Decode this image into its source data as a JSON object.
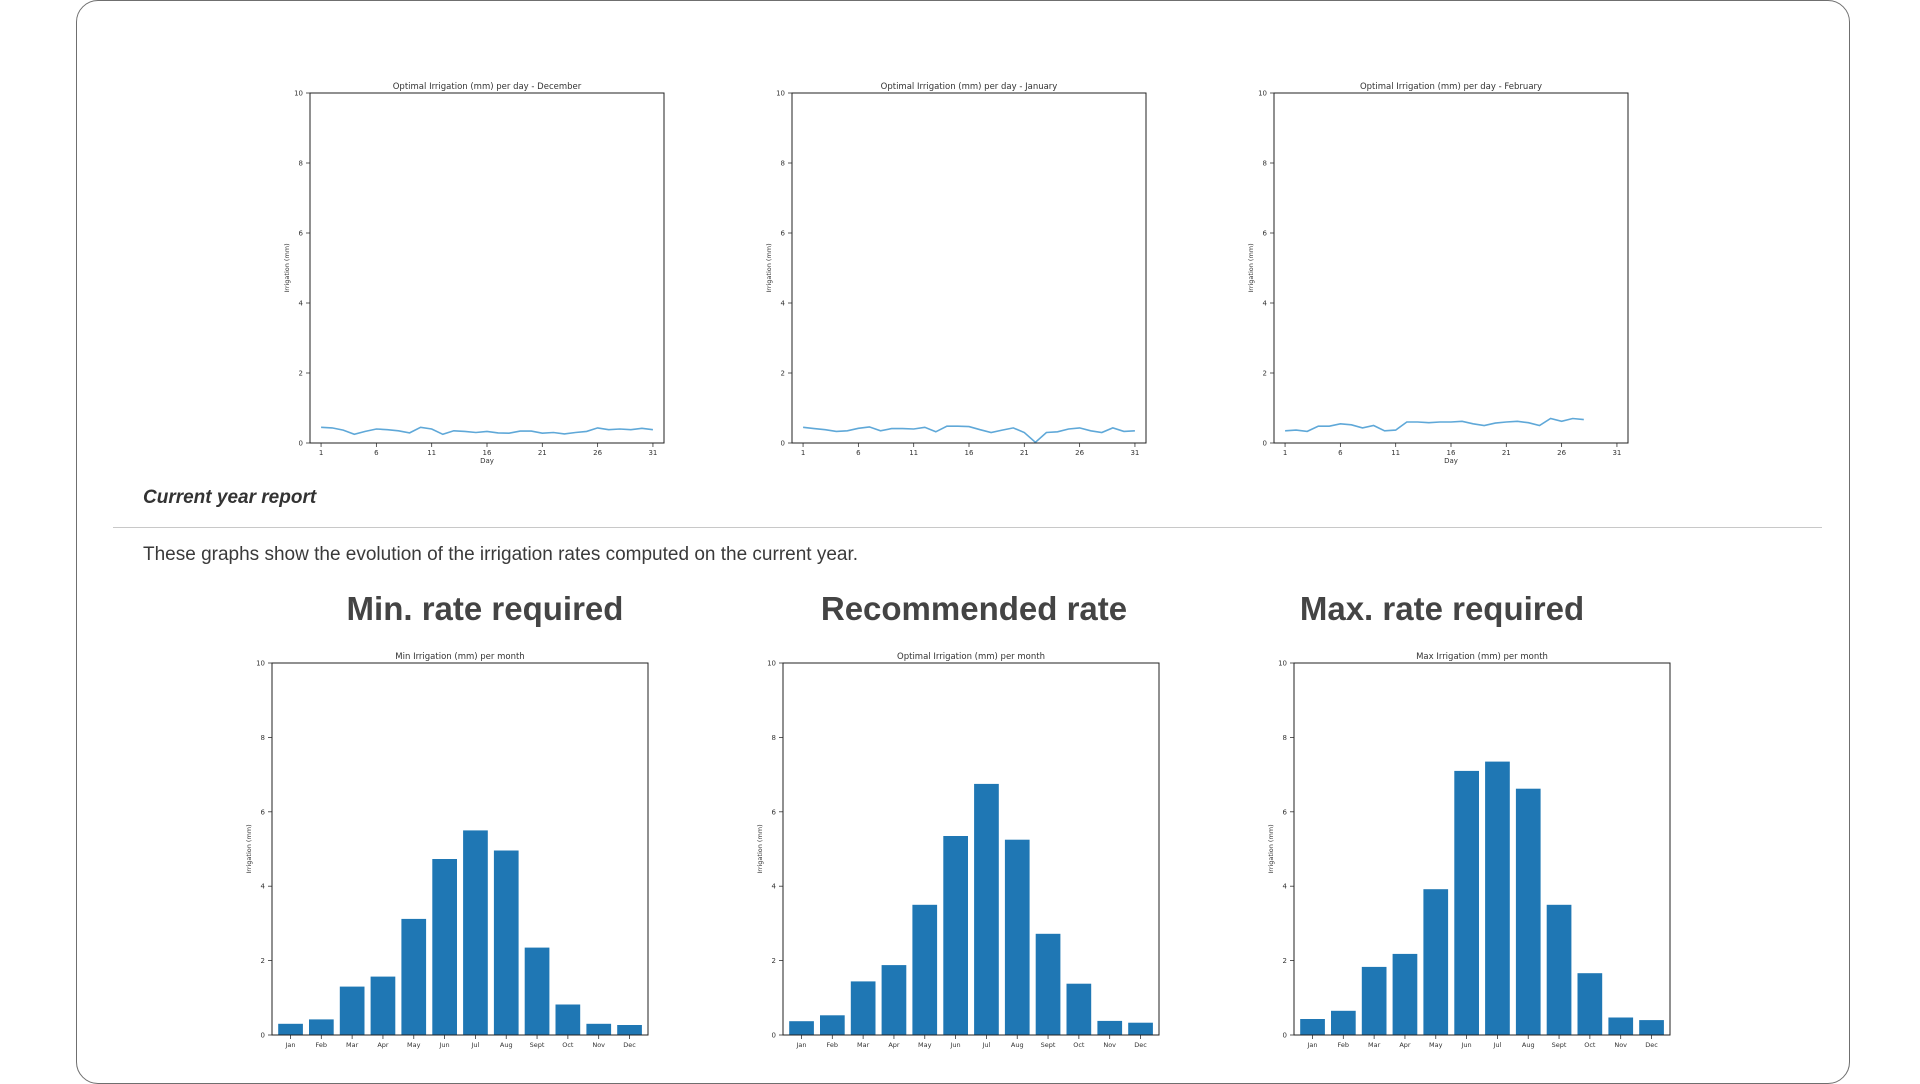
{
  "section_title": "Current year report",
  "description": "These graphs show the evolution of the irrigation rates computed on the current year.",
  "headings": {
    "min": "Min. rate required",
    "recommended": "Recommended rate",
    "max": "Max. rate required"
  },
  "colors": {
    "line": "#5fa8d8",
    "bar": "#1f77b4"
  },
  "chart_data": [
    {
      "id": "daily-december",
      "type": "line",
      "title": "Optimal Irrigation (mm) per day - December",
      "xlabel": "Day",
      "ylabel": "Irrigation (mm)",
      "xlim": [
        0,
        32
      ],
      "ylim": [
        0,
        10
      ],
      "xticks": [
        1,
        6,
        11,
        16,
        21,
        26,
        31
      ],
      "yticks": [
        0,
        2,
        4,
        6,
        8,
        10
      ],
      "series": [
        {
          "x": [
            1,
            2,
            3,
            4,
            5,
            6,
            7,
            8,
            9,
            10,
            11,
            12,
            13,
            14,
            15,
            16,
            17,
            18,
            19,
            20,
            21,
            22,
            23,
            24,
            25,
            26,
            27,
            28,
            29,
            30,
            31
          ],
          "y": [
            0.45,
            0.43,
            0.37,
            0.25,
            0.33,
            0.4,
            0.38,
            0.35,
            0.29,
            0.45,
            0.4,
            0.25,
            0.35,
            0.33,
            0.3,
            0.33,
            0.29,
            0.28,
            0.34,
            0.34,
            0.28,
            0.3,
            0.26,
            0.3,
            0.33,
            0.43,
            0.38,
            0.4,
            0.38,
            0.42,
            0.38
          ]
        }
      ]
    },
    {
      "id": "daily-january",
      "type": "line",
      "title": "Optimal Irrigation (mm) per day - January",
      "xlabel": "",
      "ylabel": "Irrigation (mm)",
      "xlim": [
        0,
        32
      ],
      "ylim": [
        0,
        10
      ],
      "xticks": [
        1,
        6,
        11,
        16,
        21,
        26,
        31
      ],
      "yticks": [
        0,
        2,
        4,
        6,
        8,
        10
      ],
      "series": [
        {
          "x": [
            1,
            2,
            3,
            4,
            5,
            6,
            7,
            8,
            9,
            10,
            11,
            12,
            13,
            14,
            15,
            16,
            17,
            18,
            19,
            20,
            21,
            22,
            23,
            24,
            25,
            26,
            27,
            28,
            29,
            30,
            31
          ],
          "y": [
            0.45,
            0.41,
            0.38,
            0.33,
            0.35,
            0.42,
            0.46,
            0.35,
            0.41,
            0.41,
            0.4,
            0.45,
            0.32,
            0.48,
            0.48,
            0.47,
            0.38,
            0.3,
            0.37,
            0.43,
            0.3,
            0.02,
            0.3,
            0.32,
            0.4,
            0.43,
            0.35,
            0.3,
            0.43,
            0.33,
            0.35
          ]
        }
      ]
    },
    {
      "id": "daily-february",
      "type": "line",
      "title": "Optimal Irrigation (mm) per day - February",
      "xlabel": "Day",
      "ylabel": "Irrigation (mm)",
      "xlim": [
        0,
        32
      ],
      "ylim": [
        0,
        10
      ],
      "xticks": [
        1,
        6,
        11,
        16,
        21,
        26,
        31
      ],
      "yticks": [
        0,
        2,
        4,
        6,
        8,
        10
      ],
      "series": [
        {
          "x": [
            1,
            2,
            3,
            4,
            5,
            6,
            7,
            8,
            9,
            10,
            11,
            12,
            13,
            14,
            15,
            16,
            17,
            18,
            19,
            20,
            21,
            22,
            23,
            24,
            25,
            26,
            27,
            28
          ],
          "y": [
            0.35,
            0.37,
            0.33,
            0.48,
            0.48,
            0.55,
            0.52,
            0.43,
            0.5,
            0.35,
            0.37,
            0.6,
            0.6,
            0.58,
            0.6,
            0.6,
            0.62,
            0.55,
            0.5,
            0.57,
            0.6,
            0.62,
            0.58,
            0.5,
            0.7,
            0.62,
            0.7,
            0.67
          ]
        }
      ]
    },
    {
      "id": "monthly-min",
      "type": "bar",
      "title": "Min Irrigation (mm) per month",
      "xlabel": "",
      "ylabel": "Irrigation (mm)",
      "ylim": [
        0,
        10
      ],
      "yticks": [
        0,
        2,
        4,
        6,
        8,
        10
      ],
      "categories": [
        "Jan",
        "Feb",
        "Mar",
        "Apr",
        "May",
        "Jun",
        "Jul",
        "Aug",
        "Sept",
        "Oct",
        "Nov",
        "Dec"
      ],
      "values": [
        0.3,
        0.42,
        1.3,
        1.57,
        3.12,
        4.73,
        5.5,
        4.96,
        2.35,
        0.82,
        0.3,
        0.27
      ]
    },
    {
      "id": "monthly-optimal",
      "type": "bar",
      "title": "Optimal Irrigation (mm) per month",
      "xlabel": "",
      "ylabel": "Irrigation (mm)",
      "ylim": [
        0,
        10
      ],
      "yticks": [
        0,
        2,
        4,
        6,
        8,
        10
      ],
      "categories": [
        "Jan",
        "Feb",
        "Mar",
        "Apr",
        "May",
        "Jun",
        "Jul",
        "Aug",
        "Sept",
        "Oct",
        "Nov",
        "Dec"
      ],
      "values": [
        0.37,
        0.53,
        1.44,
        1.88,
        3.5,
        5.35,
        6.75,
        5.25,
        2.72,
        1.38,
        0.38,
        0.33
      ]
    },
    {
      "id": "monthly-max",
      "type": "bar",
      "title": "Max Irrigation (mm) per month",
      "xlabel": "",
      "ylabel": "Irrigation (mm)",
      "ylim": [
        0,
        10
      ],
      "yticks": [
        0,
        2,
        4,
        6,
        8,
        10
      ],
      "categories": [
        "Jan",
        "Feb",
        "Mar",
        "Apr",
        "May",
        "Jun",
        "Jul",
        "Aug",
        "Sept",
        "Oct",
        "Nov",
        "Dec"
      ],
      "values": [
        0.43,
        0.65,
        1.83,
        2.18,
        3.92,
        7.1,
        7.35,
        6.62,
        3.5,
        1.66,
        0.47,
        0.4
      ]
    }
  ]
}
